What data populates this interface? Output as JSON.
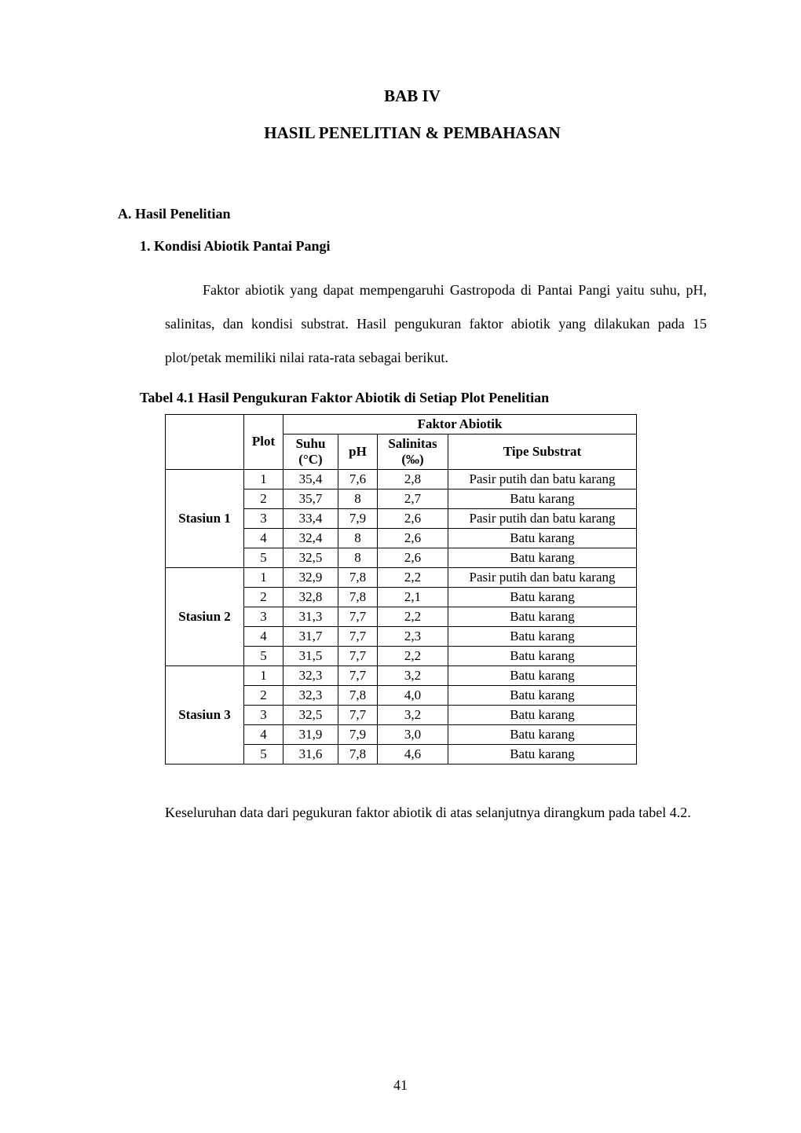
{
  "chapter": {
    "title": "BAB IV",
    "subtitle": "HASIL PENELITIAN & PEMBAHASAN"
  },
  "sectionA": {
    "heading": "A.  Hasil Penelitian",
    "sub1": {
      "heading": "1.    Kondisi Abiotik Pantai Pangi",
      "paragraph": "Faktor abiotik yang dapat mempengaruhi Gastropoda di Pantai Pangi yaitu suhu, pH, salinitas, dan kondisi substrat. Hasil pengukuran faktor abiotik yang dilakukan pada 15 plot/petak memiliki nilai rata-rata sebagai berikut."
    }
  },
  "table": {
    "caption": "Tabel 4.1 Hasil Pengukuran Faktor Abiotik di Setiap Plot Penelitian",
    "header": {
      "group": "Faktor Abiotik",
      "plot": "Plot",
      "suhu": "Suhu (°C)",
      "ph": "pH",
      "salinitas": "Salinitas (‰)",
      "substrat": "Tipe Substrat"
    },
    "stations": [
      {
        "name": "Stasiun 1",
        "rows": [
          {
            "plot": "1",
            "suhu": "35,4",
            "ph": "7,6",
            "sal": "2,8",
            "sub": "Pasir putih dan batu karang"
          },
          {
            "plot": "2",
            "suhu": "35,7",
            "ph": "8",
            "sal": "2,7",
            "sub": "Batu karang"
          },
          {
            "plot": "3",
            "suhu": "33,4",
            "ph": "7,9",
            "sal": "2,6",
            "sub": "Pasir putih dan batu karang"
          },
          {
            "plot": "4",
            "suhu": "32,4",
            "ph": "8",
            "sal": "2,6",
            "sub": "Batu karang"
          },
          {
            "plot": "5",
            "suhu": "32,5",
            "ph": "8",
            "sal": "2,6",
            "sub": "Batu karang"
          }
        ]
      },
      {
        "name": "Stasiun 2",
        "rows": [
          {
            "plot": "1",
            "suhu": "32,9",
            "ph": "7,8",
            "sal": "2,2",
            "sub": "Pasir putih dan batu karang"
          },
          {
            "plot": "2",
            "suhu": "32,8",
            "ph": "7,8",
            "sal": "2,1",
            "sub": "Batu karang"
          },
          {
            "plot": "3",
            "suhu": "31,3",
            "ph": "7,7",
            "sal": "2,2",
            "sub": "Batu karang"
          },
          {
            "plot": "4",
            "suhu": "31,7",
            "ph": "7,7",
            "sal": "2,3",
            "sub": "Batu karang"
          },
          {
            "plot": "5",
            "suhu": "31,5",
            "ph": "7,7",
            "sal": "2,2",
            "sub": "Batu karang"
          }
        ]
      },
      {
        "name": "Stasiun 3",
        "rows": [
          {
            "plot": "1",
            "suhu": "32,3",
            "ph": "7,7",
            "sal": "3,2",
            "sub": "Batu karang"
          },
          {
            "plot": "2",
            "suhu": "32,3",
            "ph": "7,8",
            "sal": "4,0",
            "sub": "Batu karang"
          },
          {
            "plot": "3",
            "suhu": "32,5",
            "ph": "7,7",
            "sal": "3,2",
            "sub": "Batu karang"
          },
          {
            "plot": "4",
            "suhu": "31,9",
            "ph": "7,9",
            "sal": "3,0",
            "sub": "Batu karang"
          },
          {
            "plot": "5",
            "suhu": "31,6",
            "ph": "7,8",
            "sal": "4,6",
            "sub": "Batu karang"
          }
        ]
      }
    ]
  },
  "afterTable": "Keseluruhan data dari pegukuran faktor abiotik di atas selanjutnya dirangkum pada tabel 4.2.",
  "pageNumber": "41"
}
